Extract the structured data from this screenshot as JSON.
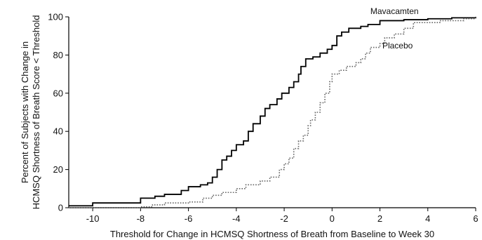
{
  "chart_data": {
    "type": "line",
    "title": "",
    "xlabel": "Threshold for Change in HCMSQ Shortness of Breath from Baseline to Week 30",
    "ylabel_lines": [
      "Percent of Subjects with Change in",
      "HCMSQ Shortness of Breath Score < Threshold"
    ],
    "xlim": [
      -11,
      6
    ],
    "ylim": [
      0,
      100
    ],
    "x_ticks": [
      -10,
      -8,
      -6,
      -4,
      -2,
      0,
      2,
      4,
      6
    ],
    "x_tick_labels": [
      "-10",
      "-8",
      "-6",
      "-4",
      "-2",
      "0",
      "2",
      "4",
      "6"
    ],
    "y_ticks": [
      0,
      20,
      40,
      60,
      80,
      100
    ],
    "y_tick_labels": [
      "0",
      "20",
      "40",
      "60",
      "80",
      "100"
    ],
    "grid": false,
    "series": [
      {
        "name": "Mavacamten",
        "style": "solid",
        "color": "#000000",
        "points": [
          [
            -11,
            1
          ],
          [
            -10,
            2.5
          ],
          [
            -8.3,
            2.5
          ],
          [
            -8,
            5
          ],
          [
            -7.4,
            6
          ],
          [
            -7,
            7
          ],
          [
            -6.3,
            9
          ],
          [
            -6,
            11
          ],
          [
            -5.5,
            12
          ],
          [
            -5.2,
            13
          ],
          [
            -5,
            16
          ],
          [
            -4.8,
            20
          ],
          [
            -4.6,
            25
          ],
          [
            -4.4,
            27
          ],
          [
            -4.2,
            30
          ],
          [
            -4,
            33
          ],
          [
            -3.7,
            35
          ],
          [
            -3.5,
            40
          ],
          [
            -3.3,
            44
          ],
          [
            -3,
            48
          ],
          [
            -2.8,
            52
          ],
          [
            -2.6,
            54
          ],
          [
            -2.3,
            57
          ],
          [
            -2.1,
            60
          ],
          [
            -1.8,
            63
          ],
          [
            -1.6,
            66
          ],
          [
            -1.4,
            70
          ],
          [
            -1.3,
            74
          ],
          [
            -1.1,
            78
          ],
          [
            -0.8,
            79
          ],
          [
            -0.5,
            81
          ],
          [
            -0.2,
            83
          ],
          [
            0,
            85
          ],
          [
            0.2,
            90
          ],
          [
            0.4,
            92
          ],
          [
            0.7,
            94
          ],
          [
            1.2,
            95
          ],
          [
            1.5,
            96
          ],
          [
            2,
            98
          ],
          [
            3,
            98.5
          ],
          [
            4,
            99
          ],
          [
            5,
            99.5
          ],
          [
            6,
            100
          ]
        ]
      },
      {
        "name": "Placebo",
        "style": "dotted",
        "color": "#666666",
        "points": [
          [
            -11,
            0
          ],
          [
            -8,
            0.5
          ],
          [
            -7.5,
            1.5
          ],
          [
            -7,
            2.5
          ],
          [
            -6,
            3
          ],
          [
            -5.4,
            5
          ],
          [
            -5,
            6.5
          ],
          [
            -4.6,
            8
          ],
          [
            -4,
            10
          ],
          [
            -3.6,
            12
          ],
          [
            -3,
            14
          ],
          [
            -2.6,
            16
          ],
          [
            -2.2,
            20
          ],
          [
            -2,
            23
          ],
          [
            -1.8,
            26
          ],
          [
            -1.6,
            31
          ],
          [
            -1.4,
            35
          ],
          [
            -1.2,
            38
          ],
          [
            -1,
            43
          ],
          [
            -0.9,
            46
          ],
          [
            -0.7,
            50
          ],
          [
            -0.5,
            55
          ],
          [
            -0.3,
            60
          ],
          [
            -0.1,
            66
          ],
          [
            0,
            70
          ],
          [
            0.3,
            72
          ],
          [
            0.6,
            74
          ],
          [
            1,
            76
          ],
          [
            1.2,
            78
          ],
          [
            1.4,
            81
          ],
          [
            1.6,
            84
          ],
          [
            2,
            86
          ],
          [
            2.2,
            89
          ],
          [
            2.6,
            91
          ],
          [
            3,
            94
          ],
          [
            3.4,
            97
          ],
          [
            4.5,
            98
          ],
          [
            5.5,
            99
          ],
          [
            6,
            100
          ]
        ]
      }
    ],
    "annotations": [
      {
        "text": "Mavacamten",
        "at_x": 1.6,
        "at_y": 103
      },
      {
        "text": "Placebo",
        "at_x": 2.1,
        "at_y": 85
      }
    ]
  }
}
